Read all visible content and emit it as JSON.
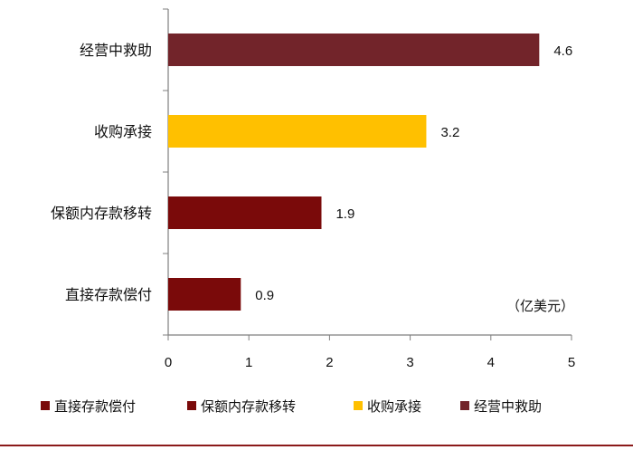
{
  "chart_data": {
    "type": "bar",
    "orientation": "horizontal",
    "categories": [
      "直接存款偿付",
      "保额内存款移转",
      "收购承接",
      "经营中救助"
    ],
    "values": [
      0.9,
      1.9,
      3.2,
      4.6
    ],
    "value_labels": [
      "0.9",
      "1.9",
      "3.2",
      "4.6"
    ],
    "colors": [
      "#7a0a0a",
      "#7a0a0a",
      "#ffc000",
      "#72242a"
    ],
    "unit": "（亿美元）",
    "xlim": [
      0,
      5
    ],
    "xticks": [
      "0",
      "1",
      "2",
      "3",
      "4",
      "5"
    ],
    "grid": false,
    "legend_position": "bottom",
    "legend": [
      {
        "label": "直接存款偿付",
        "color": "#7a0a0a"
      },
      {
        "label": "保额内存款移转",
        "color": "#7a0a0a"
      },
      {
        "label": "收购承接",
        "color": "#ffc000"
      },
      {
        "label": "经营中救助",
        "color": "#72242a"
      }
    ]
  },
  "footer_rule_color": "#8b1a1a"
}
